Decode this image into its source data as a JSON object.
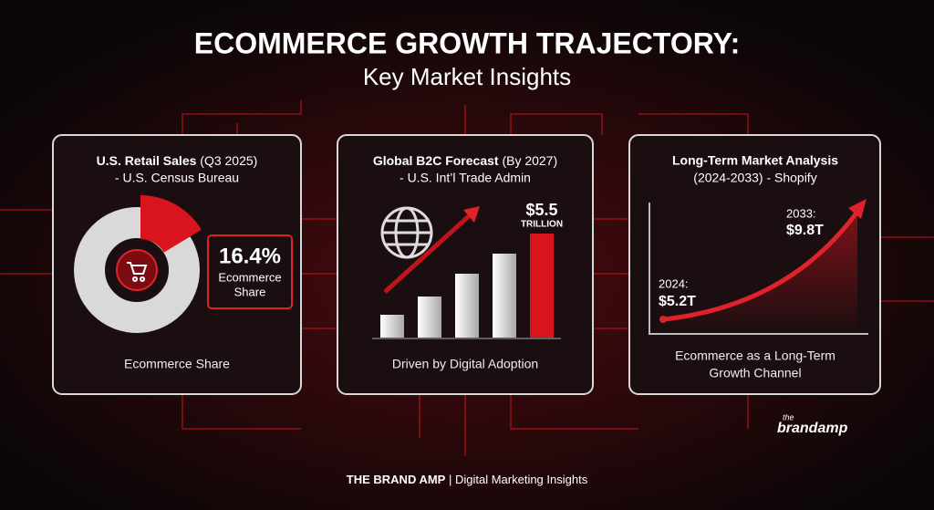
{
  "header": {
    "title": "ECOMMERCE GROWTH TRAJECTORY:",
    "subtitle": "Key Market Insights"
  },
  "panels": [
    {
      "title": "U.S. Retail Sales",
      "title_note": "(Q3 2025)",
      "source": "- U.S. Census Bureau",
      "share": 16.4,
      "share_label": "16.4%",
      "share_caption": [
        "Ecommerce",
        "Share"
      ],
      "caption": "Ecommerce Share"
    },
    {
      "title": "Global B2C Forecast",
      "title_note": "(By 2027)",
      "source": "- U.S. Int’l Trade Admin",
      "value_label": "$5.5",
      "value_unit": "TRILLION",
      "caption": "Driven by Digital Adoption"
    },
    {
      "title": "Long-Term Market Analysis",
      "source": "(2024-2033) - Shopify",
      "start_year": "2024:",
      "start_value": "$5.2T",
      "end_year": "2033:",
      "end_value": "$9.8T",
      "caption": [
        "Ecommerce as a Long-Term",
        "Growth Channel"
      ]
    }
  ],
  "logo": {
    "small": "the",
    "text": "brandamp"
  },
  "footer": {
    "brand": "THE BRAND AMP",
    "tagline": "| Digital Marketing Insights"
  }
}
